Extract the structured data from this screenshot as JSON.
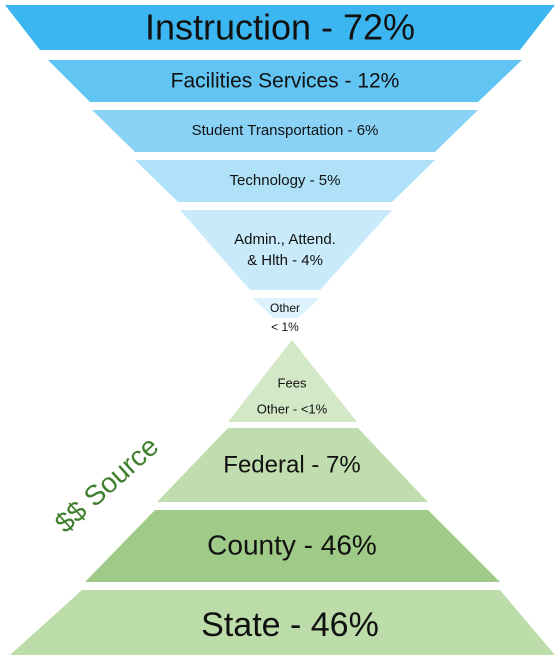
{
  "spending": [
    {
      "lines": [
        "Instruction - 72%"
      ]
    },
    {
      "lines": [
        "Facilities Services - 12%"
      ]
    },
    {
      "lines": [
        "Student Transportation - 6%"
      ]
    },
    {
      "lines": [
        "Technology - 5%"
      ]
    },
    {
      "lines": [
        "Admin., Attend.",
        "& Hlth - 4%"
      ]
    },
    {
      "lines": [
        "Other",
        "< 1%"
      ]
    }
  ],
  "sources": [
    {
      "lines": [
        "Fees",
        "Other - <1%"
      ]
    },
    {
      "lines": [
        "Federal - 7%"
      ]
    },
    {
      "lines": [
        "County - 46%"
      ]
    },
    {
      "lines": [
        "State - 46%"
      ]
    }
  ],
  "source_title": "$$ Source"
}
